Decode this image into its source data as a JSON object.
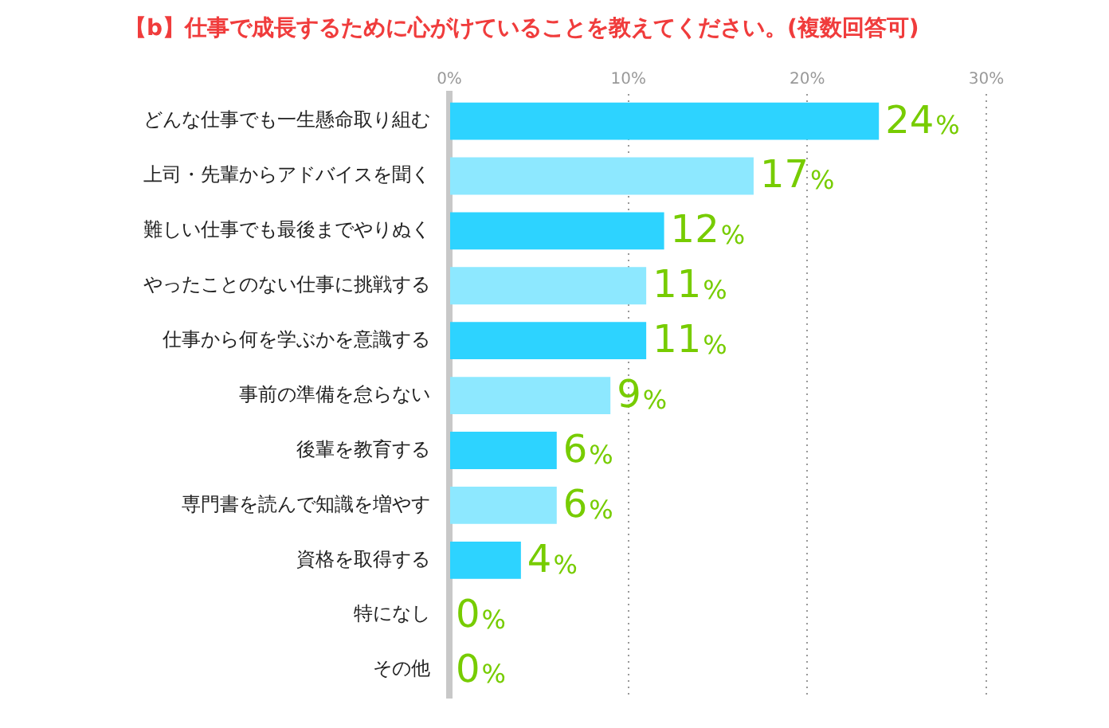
{
  "chart_data": {
    "type": "bar",
    "orientation": "horizontal",
    "title": "【b】仕事で成長するために心がけていることを教えてください。(複数回答可)",
    "categories": [
      "どんな仕事でも一生懸命取り組む",
      "上司・先輩からアドバイスを聞く",
      "難しい仕事でも最後までやりぬく",
      "やったことのない仕事に挑戦する",
      "仕事から何を学ぶかを意識する",
      "事前の準備を怠らない",
      "後輩を教育する",
      "専門書を読んで知識を増やす",
      "資格を取得する",
      "特になし",
      "その他"
    ],
    "values": [
      24,
      17,
      12,
      11,
      11,
      9,
      6,
      6,
      4,
      0,
      0
    ],
    "colors": [
      "#2dd3ff",
      "#8de8ff",
      "#2dd3ff",
      "#8de8ff",
      "#2dd3ff",
      "#8de8ff",
      "#2dd3ff",
      "#8de8ff",
      "#2dd3ff",
      "#8de8ff",
      "#2dd3ff"
    ],
    "value_labels": [
      "24%",
      "17%",
      "12%",
      "11%",
      "11%",
      "9%",
      "6%",
      "6%",
      "4%",
      "0%",
      "0%"
    ],
    "xlim": [
      0,
      30
    ],
    "xticks": [
      {
        "value": 0,
        "label": "0%"
      },
      {
        "value": 10,
        "label": "10%"
      },
      {
        "value": 20,
        "label": "20%"
      },
      {
        "value": 30,
        "label": "30%"
      }
    ],
    "grid": "x",
    "legend": false
  }
}
